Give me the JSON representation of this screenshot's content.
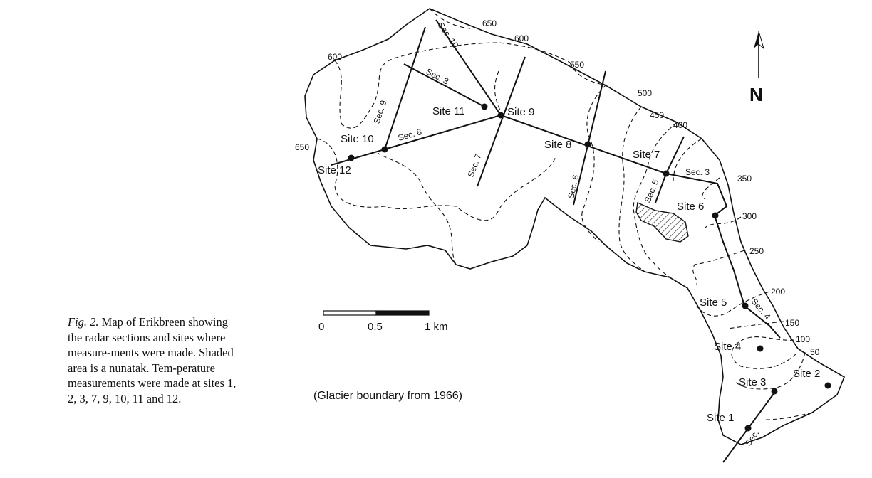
{
  "caption": {
    "figure_label": "Fig. 2.",
    "text": "Map of Erikbreen showing the radar sections and sites where measure-ments were made. Shaded area is a nunatak. Tem-perature measurements were made at sites 1, 2, 3, 7, 9, 10, 11 and 12."
  },
  "note": "(Glacier boundary from 1966)",
  "north": "N",
  "scale_bar": {
    "labels": [
      "0",
      "0.5",
      "1 km"
    ]
  },
  "sites": [
    {
      "id": "site-1",
      "label": "Site 1"
    },
    {
      "id": "site-2",
      "label": "Site 2"
    },
    {
      "id": "site-3",
      "label": "Site 3"
    },
    {
      "id": "site-4",
      "label": "Site 4"
    },
    {
      "id": "site-5",
      "label": "Site 5"
    },
    {
      "id": "site-6",
      "label": "Site 6"
    },
    {
      "id": "site-7",
      "label": "Site 7"
    },
    {
      "id": "site-8",
      "label": "Site 8"
    },
    {
      "id": "site-9",
      "label": "Site 9"
    },
    {
      "id": "site-10",
      "label": "Site 10"
    },
    {
      "id": "site-11",
      "label": "Site 11"
    },
    {
      "id": "site-12",
      "label": "Site 12"
    }
  ],
  "sections": [
    {
      "id": "sec-1",
      "label": "Sec."
    },
    {
      "id": "sec-3",
      "label": "Sec. 3"
    },
    {
      "id": "sec-3b",
      "label": "Sec. 3"
    },
    {
      "id": "sec-4",
      "label": "Sec. 4"
    },
    {
      "id": "sec-5",
      "label": "Sec. 5"
    },
    {
      "id": "sec-6",
      "label": "Sec. 6"
    },
    {
      "id": "sec-7",
      "label": "Sec. 7"
    },
    {
      "id": "sec-8",
      "label": "Sec. 8"
    },
    {
      "id": "sec-9",
      "label": "Sec. 9"
    },
    {
      "id": "sec-10",
      "label": "Sec. 10"
    }
  ],
  "contours": [
    "650",
    "600",
    "600",
    "550",
    "500",
    "450",
    "400",
    "350",
    "300",
    "250",
    "200",
    "150",
    "100",
    "50",
    "650"
  ],
  "colors": {
    "ink": "#111111",
    "paper": "#ffffff"
  }
}
